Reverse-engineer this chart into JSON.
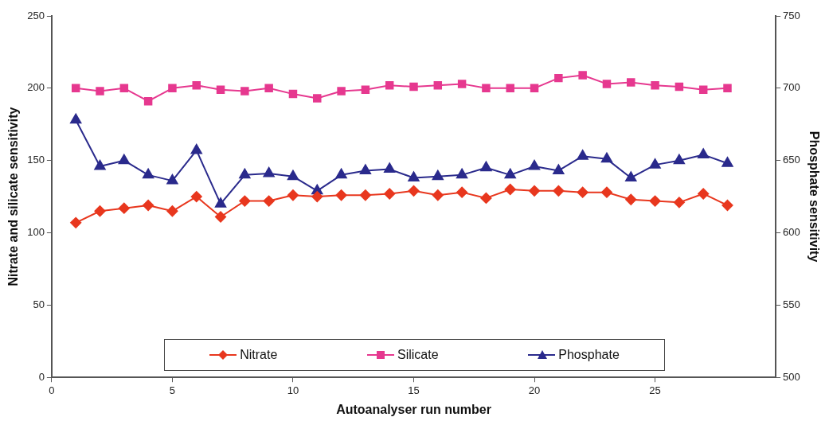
{
  "chart_data": {
    "type": "line",
    "xlabel": "Autoanalyser run number",
    "ylabel": "Nitrate and silicate sensitivity",
    "y2label": "Phosphate sensitivity",
    "x": [
      1,
      2,
      3,
      4,
      5,
      6,
      7,
      8,
      9,
      10,
      11,
      12,
      13,
      14,
      15,
      16,
      17,
      18,
      19,
      20,
      21,
      22,
      23,
      24,
      25,
      26,
      27,
      28
    ],
    "series": [
      {
        "name": "Nitrate",
        "color": "#e8371e",
        "marker": "diamond",
        "values": [
          107,
          115,
          117,
          119,
          115,
          125,
          111,
          122,
          122,
          126,
          125,
          126,
          126,
          127,
          129,
          126,
          128,
          124,
          130,
          129,
          129,
          128,
          128,
          123,
          122,
          121,
          127,
          119
        ]
      },
      {
        "name": "Silicate",
        "color": "#e6388f",
        "marker": "square",
        "values": [
          200,
          198,
          200,
          191,
          200,
          202,
          199,
          198,
          200,
          196,
          193,
          198,
          199,
          202,
          201,
          202,
          203,
          200,
          200,
          200,
          207,
          209,
          203,
          204,
          202,
          201,
          199,
          200
        ]
      },
      {
        "name": "Phosphate",
        "color": "#2a2a8c",
        "marker": "triangle",
        "axis": "y2",
        "values": [
          678,
          646,
          650,
          640,
          636,
          657,
          620,
          640,
          641,
          639,
          629,
          640,
          643,
          644,
          638,
          639,
          640,
          645,
          640,
          646,
          643,
          653,
          651,
          638,
          647,
          650,
          654,
          648
        ]
      }
    ],
    "xlim": [
      0,
      30
    ],
    "xticks": [
      0,
      5,
      10,
      15,
      20,
      25
    ],
    "ylim": [
      0,
      250
    ],
    "yticks": [
      0,
      50,
      100,
      150,
      200,
      250
    ],
    "y2lim": [
      500,
      750
    ],
    "y2ticks": [
      500,
      550,
      600,
      650,
      700,
      750
    ],
    "grid": false,
    "legend": "bottom"
  }
}
